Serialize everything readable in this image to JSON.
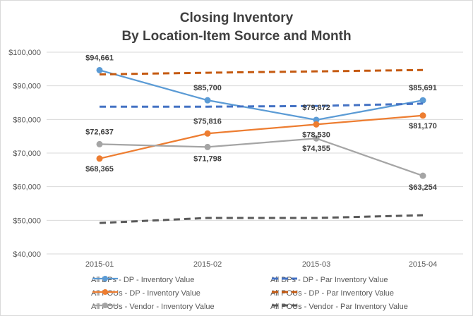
{
  "chart_data": {
    "type": "line",
    "title": "Closing Inventory",
    "subtitle": "By Location-Item Source and Month",
    "categories": [
      "2015-01",
      "2015-02",
      "2015-03",
      "2015-04"
    ],
    "y_ticks": [
      "$40,000",
      "$50,000",
      "$60,000",
      "$70,000",
      "$80,000",
      "$90,000",
      "$100,000"
    ],
    "ylim": [
      40000,
      100000
    ],
    "grid": true,
    "legend_position": "bottom",
    "series": [
      {
        "name": "All DPs - DP - Inventory Value",
        "values": [
          94661,
          85700,
          79872,
          85691
        ],
        "labels": [
          "$94,661",
          "$85,700",
          "$79,872",
          "$85,691"
        ],
        "color": "#5b9bd5",
        "style": "solid"
      },
      {
        "name": "All DPs - DP - Par Inventory Value",
        "values": [
          83800,
          83800,
          84000,
          84700
        ],
        "labels": [],
        "color": "#4472c4",
        "style": "dashed"
      },
      {
        "name": "All POUs - DP - Inventory Value",
        "values": [
          68365,
          75816,
          78530,
          81170
        ],
        "labels": [
          "$68,365",
          "$75,816",
          "$78,530",
          "$81,170"
        ],
        "color": "#ed7d31",
        "style": "solid"
      },
      {
        "name": "All POUs - DP - Par Inventory Value",
        "values": [
          93400,
          93900,
          94300,
          94700
        ],
        "labels": [],
        "color": "#c55a11",
        "style": "dashed"
      },
      {
        "name": "All POUs - Vendor - Inventory Value",
        "values": [
          72637,
          71798,
          74355,
          63254
        ],
        "labels": [
          "$72,637",
          "$71,798",
          "$74,355",
          "$63,254"
        ],
        "color": "#a5a5a5",
        "style": "solid"
      },
      {
        "name": "All POUs - Vendor - Par Inventory Value",
        "values": [
          49200,
          50700,
          50700,
          51500
        ],
        "labels": [],
        "color": "#595959",
        "style": "dashed"
      }
    ]
  }
}
